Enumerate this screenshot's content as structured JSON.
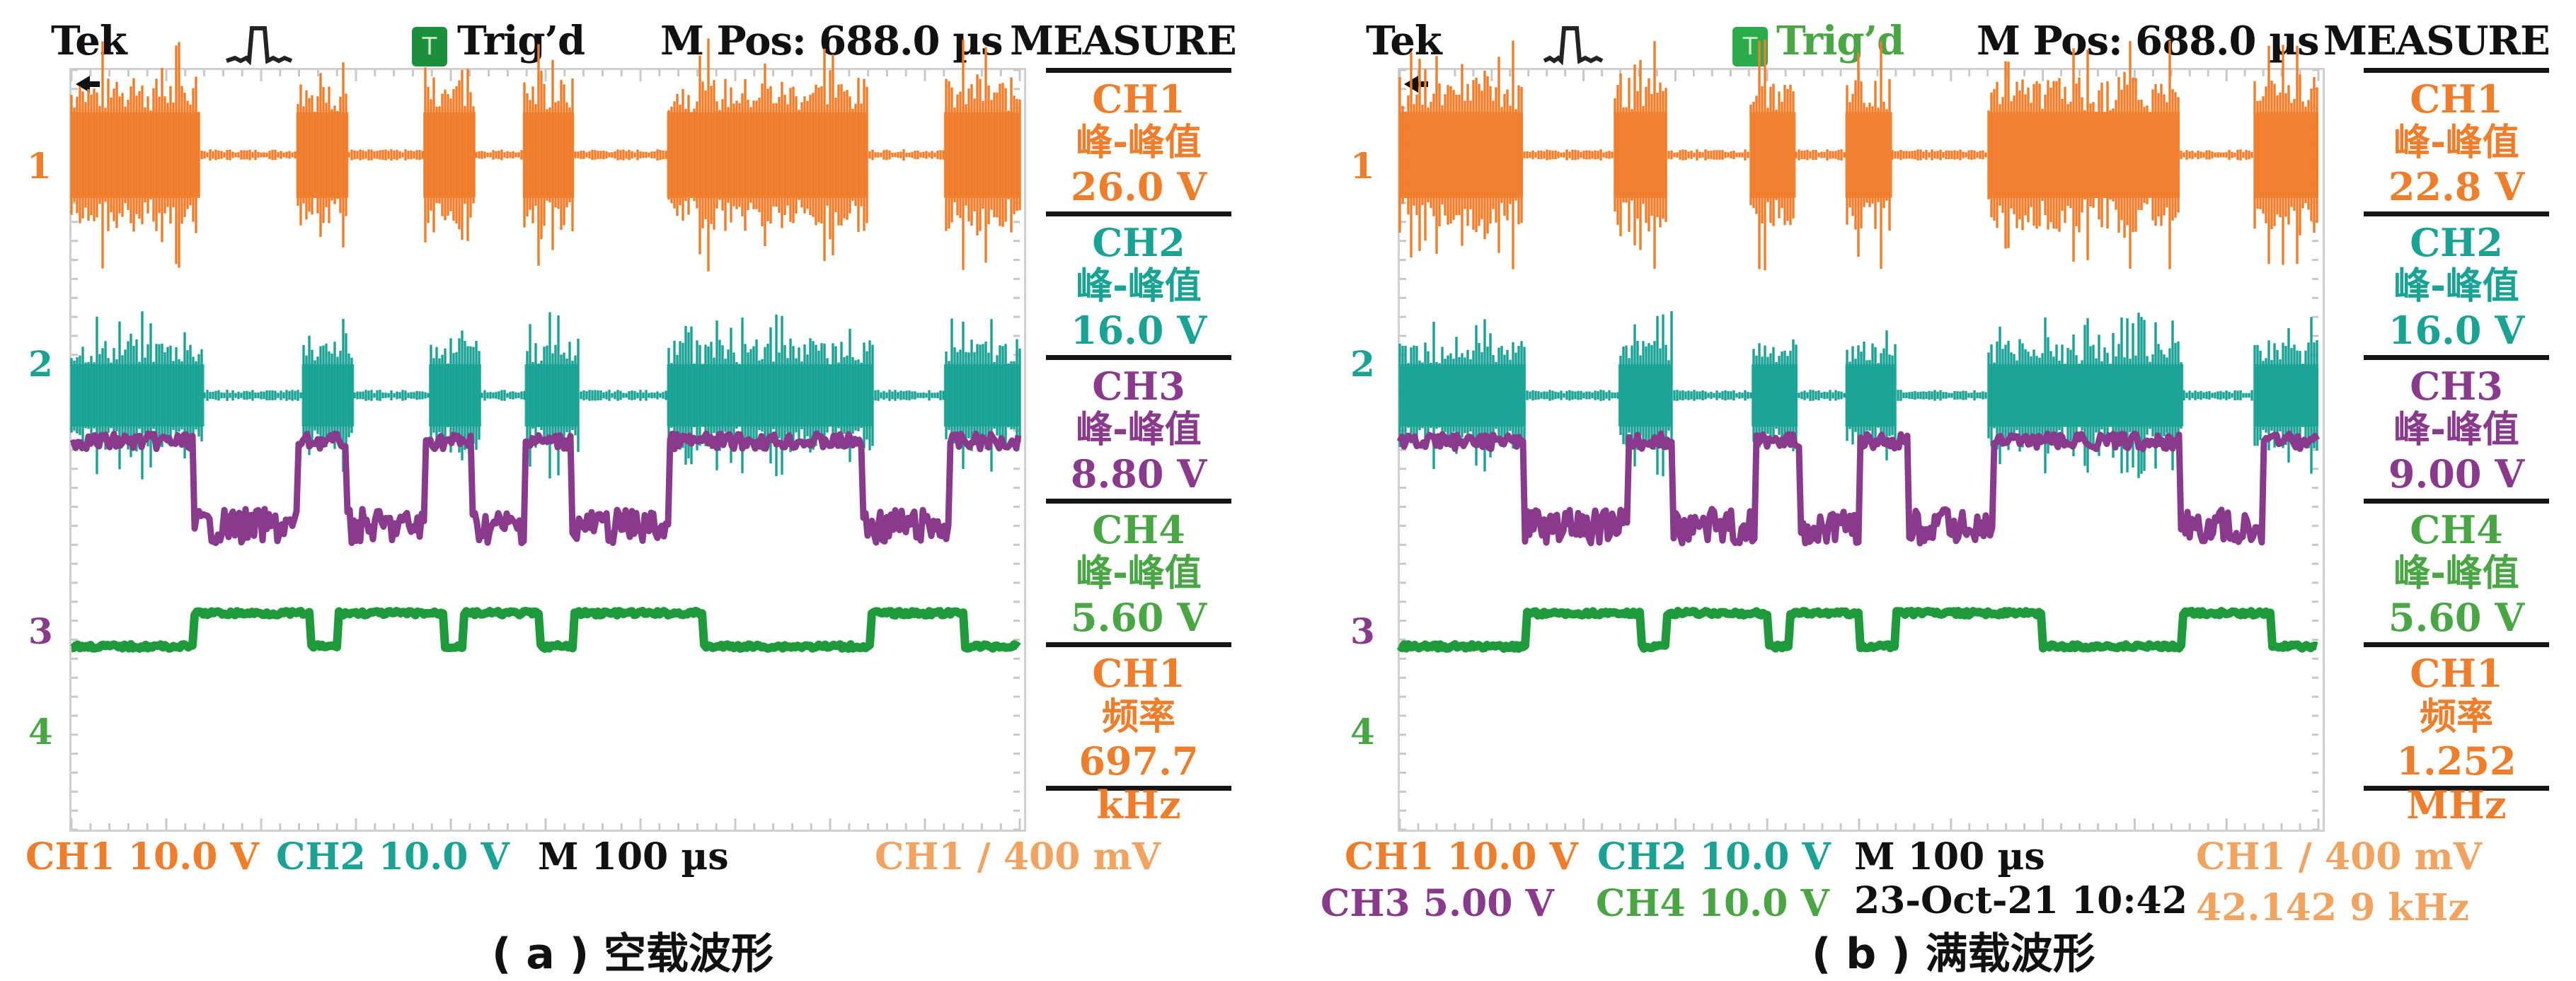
{
  "colors": {
    "ch1": "#ee7d2c",
    "ch2": "#1aa394",
    "ch3": "#8a3a8c",
    "ch4": "#1e9a3c",
    "ch4_label": "#4aa645",
    "ch1_light": "#f1a35f",
    "text": "#111111",
    "trig_green": "#1c8f3c"
  },
  "panels": [
    {
      "id": "a",
      "header": {
        "brand": "Tek",
        "trigger_status": "Trig’d",
        "m_pos": "M Pos: 688.0 µs",
        "measure_title": "MEASURE"
      },
      "channel_markers": [
        "1",
        "2",
        "3",
        "4"
      ],
      "measurements": [
        {
          "channel": "CH1",
          "label": "峰-峰值",
          "value": "26.0 V",
          "color": "ch1"
        },
        {
          "channel": "CH2",
          "label": "峰-峰值",
          "value": "16.0 V",
          "color": "ch2"
        },
        {
          "channel": "CH3",
          "label": "峰-峰值",
          "value": "8.80 V",
          "color": "ch3"
        },
        {
          "channel": "CH4",
          "label": "峰-峰值",
          "value": "5.60 V",
          "color": "ch4_label"
        },
        {
          "channel": "CH1",
          "label": "频率",
          "value": "697.7 kHz",
          "color": "ch1"
        }
      ],
      "footer": {
        "ch1_scale": "CH1 10.0 V",
        "ch2_scale": "CH2 10.0 V",
        "timebase": "M 100 µs",
        "trigger": "CH1 ∕ 400 mV"
      },
      "caption": "( a ) 空载波形"
    },
    {
      "id": "b",
      "header": {
        "brand": "Tek",
        "trigger_status": "Trig’d",
        "m_pos": "M Pos: 688.0 µs",
        "measure_title": "MEASURE"
      },
      "channel_markers": [
        "1",
        "2",
        "3",
        "4"
      ],
      "measurements": [
        {
          "channel": "CH1",
          "label": "峰-峰值",
          "value": "22.8 V",
          "color": "ch1"
        },
        {
          "channel": "CH2",
          "label": "峰-峰值",
          "value": "16.0 V",
          "color": "ch2"
        },
        {
          "channel": "CH3",
          "label": "峰-峰值",
          "value": "9.00 V",
          "color": "ch3"
        },
        {
          "channel": "CH4",
          "label": "峰-峰值",
          "value": "5.60 V",
          "color": "ch4_label"
        },
        {
          "channel": "CH1",
          "label": "频率",
          "value": "1.252 MHz",
          "color": "ch1"
        }
      ],
      "footer": {
        "ch1_scale": "CH1 10.0 V",
        "ch2_scale": "CH2 10.0 V",
        "ch3_scale": "CH3 5.00 V",
        "ch4_scale": "CH4 10.0 V",
        "timebase": "M 100 µs",
        "datetime": "23-Oct-21 10:42",
        "trigger": "CH1 ∕ 400 mV",
        "trigger_freq": "42.142 9 kHz"
      },
      "caption": "( b ) 满载波形"
    }
  ],
  "chart_data": [
    {
      "type": "line",
      "title": "( a ) 空载波形",
      "xlabel": "time (M 100 µs/div)",
      "x_range_div": [
        0,
        10
      ],
      "y_range_div": [
        -4,
        4
      ],
      "grid": false,
      "series": [
        {
          "name": "CH1",
          "scale": "10.0 V/div",
          "vpp": "26.0 V",
          "kind": "burst",
          "bursts": [
            [
              0.0,
              0.135
            ],
            [
              0.237,
              0.292
            ],
            [
              0.371,
              0.426
            ],
            [
              0.476,
              0.53
            ],
            [
              0.628,
              0.84
            ],
            [
              0.92,
              1.0
            ]
          ]
        },
        {
          "name": "CH2",
          "scale": "10.0 V/div",
          "vpp": "16.0 V",
          "kind": "burst",
          "bursts": [
            [
              0.0,
              0.14
            ],
            [
              0.243,
              0.298
            ],
            [
              0.377,
              0.432
            ],
            [
              0.478,
              0.535
            ],
            [
              0.628,
              0.845
            ],
            [
              0.92,
              1.0
            ]
          ]
        },
        {
          "name": "CH3",
          "vpp": "8.80 V",
          "kind": "level",
          "high": [
            [
              0.0,
              0.128
            ],
            [
              0.238,
              0.29
            ],
            [
              0.372,
              0.422
            ],
            [
              0.478,
              0.528
            ],
            [
              0.63,
              0.835
            ],
            [
              0.925,
              1.0
            ]
          ]
        },
        {
          "name": "CH4",
          "vpp": "5.60 V",
          "kind": "level",
          "high": [
            [
              0.129,
              0.252
            ],
            [
              0.28,
              0.392
            ],
            [
              0.413,
              0.494
            ],
            [
              0.529,
              0.665
            ],
            [
              0.844,
              0.942
            ]
          ]
        }
      ],
      "measurements": {
        "CH1_pk_pk": "26.0 V",
        "CH2_pk_pk": "16.0 V",
        "CH3_pk_pk": "8.80 V",
        "CH4_pk_pk": "5.60 V",
        "CH1_freq": "697.7 kHz"
      }
    },
    {
      "type": "line",
      "title": "( b ) 满载波形",
      "xlabel": "time (M 100 µs/div)",
      "x_range_div": [
        0,
        10
      ],
      "y_range_div": [
        -4,
        4
      ],
      "grid": false,
      "series": [
        {
          "name": "CH1",
          "scale": "10.0 V/div",
          "vpp": "22.8 V",
          "kind": "burst",
          "bursts": [
            [
              0.0,
              0.134
            ],
            [
              0.233,
              0.291
            ],
            [
              0.381,
              0.431
            ],
            [
              0.485,
              0.536
            ],
            [
              0.64,
              0.849
            ],
            [
              0.93,
              1.0
            ]
          ]
        },
        {
          "name": "CH2",
          "scale": "10.0 V/div",
          "vpp": "16.0 V",
          "kind": "burst",
          "bursts": [
            [
              0.0,
              0.137
            ],
            [
              0.238,
              0.296
            ],
            [
              0.383,
              0.433
            ],
            [
              0.485,
              0.54
            ],
            [
              0.64,
              0.853
            ],
            [
              0.93,
              1.0
            ]
          ]
        },
        {
          "name": "CH3",
          "scale": "5.00 V/div",
          "vpp": "9.00 V",
          "kind": "level",
          "high": [
            [
              0.0,
              0.135
            ],
            [
              0.248,
              0.298
            ],
            [
              0.388,
              0.436
            ],
            [
              0.5,
              0.553
            ],
            [
              0.645,
              0.85
            ],
            [
              0.94,
              1.0
            ]
          ]
        },
        {
          "name": "CH4",
          "scale": "10.0 V/div",
          "vpp": "5.60 V",
          "kind": "level",
          "high": [
            [
              0.137,
              0.262
            ],
            [
              0.289,
              0.4
            ],
            [
              0.425,
              0.5
            ],
            [
              0.539,
              0.699
            ],
            [
              0.851,
              0.948
            ]
          ]
        }
      ],
      "measurements": {
        "CH1_pk_pk": "22.8 V",
        "CH2_pk_pk": "16.0 V",
        "CH3_pk_pk": "9.00 V",
        "CH4_pk_pk": "5.60 V",
        "CH1_freq": "1.252 MHz"
      },
      "trigger_freq": "42.142 9 kHz",
      "datetime": "23-Oct-21 10:42"
    }
  ]
}
